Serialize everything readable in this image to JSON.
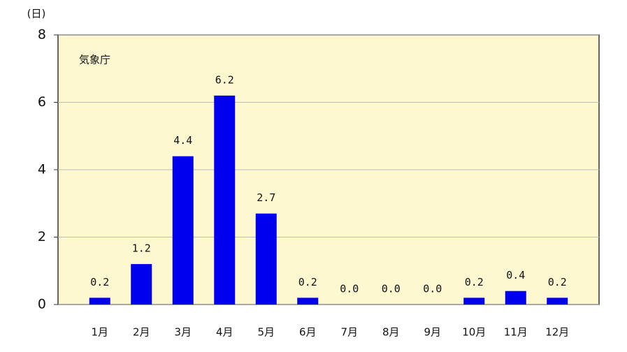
{
  "chart_data": {
    "type": "bar",
    "y_unit": "(日)",
    "annotation": "気象庁",
    "categories": [
      "1月",
      "2月",
      "3月",
      "4月",
      "5月",
      "6月",
      "7月",
      "8月",
      "9月",
      "10月",
      "11月",
      "12月"
    ],
    "values": [
      0.2,
      1.2,
      4.4,
      6.2,
      2.7,
      0.2,
      0,
      0,
      0,
      0.2,
      0.4,
      0.2
    ],
    "value_labels": [
      "0.2",
      "1.2",
      "4.4",
      "6.2",
      "2.7",
      "0.2",
      "0.0",
      "0.0",
      "0.0",
      "0.2",
      "0.4",
      "0.2"
    ],
    "color": "#0000ee",
    "background": "#fdf8d0",
    "ylim": [
      0,
      8
    ],
    "yticks": [
      0,
      2,
      4,
      6,
      8
    ],
    "grid": true
  }
}
